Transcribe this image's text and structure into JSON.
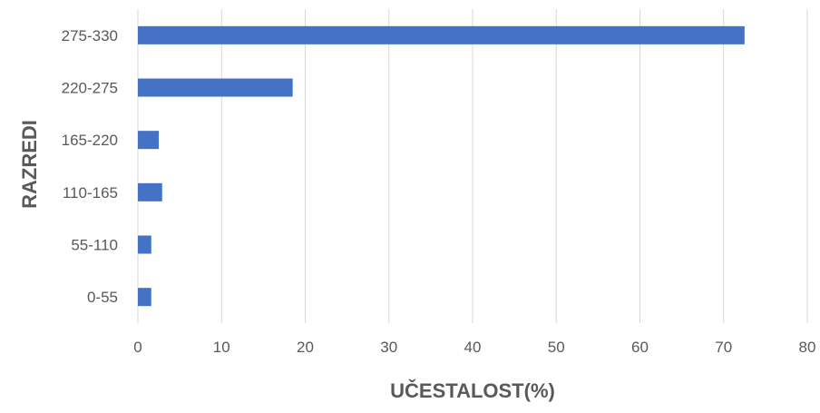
{
  "chart_data": {
    "type": "bar",
    "orientation": "horizontal",
    "categories": [
      "0-55",
      "55-110",
      "110-165",
      "165-220",
      "220-275",
      "275-330"
    ],
    "values": [
      1.6,
      1.6,
      2.9,
      2.5,
      18.5,
      72.5
    ],
    "xlabel": "UČESTALOST(%)",
    "ylabel": "RAZREDI",
    "xlim": [
      0,
      80
    ],
    "xticks": [
      "0",
      "10",
      "20",
      "30",
      "40",
      "50",
      "60",
      "70",
      "80"
    ],
    "grid": "vertical",
    "legend": "none",
    "bar_color": "#4472C4",
    "grid_color": "#D9D9D9",
    "text_color": "#595959"
  }
}
